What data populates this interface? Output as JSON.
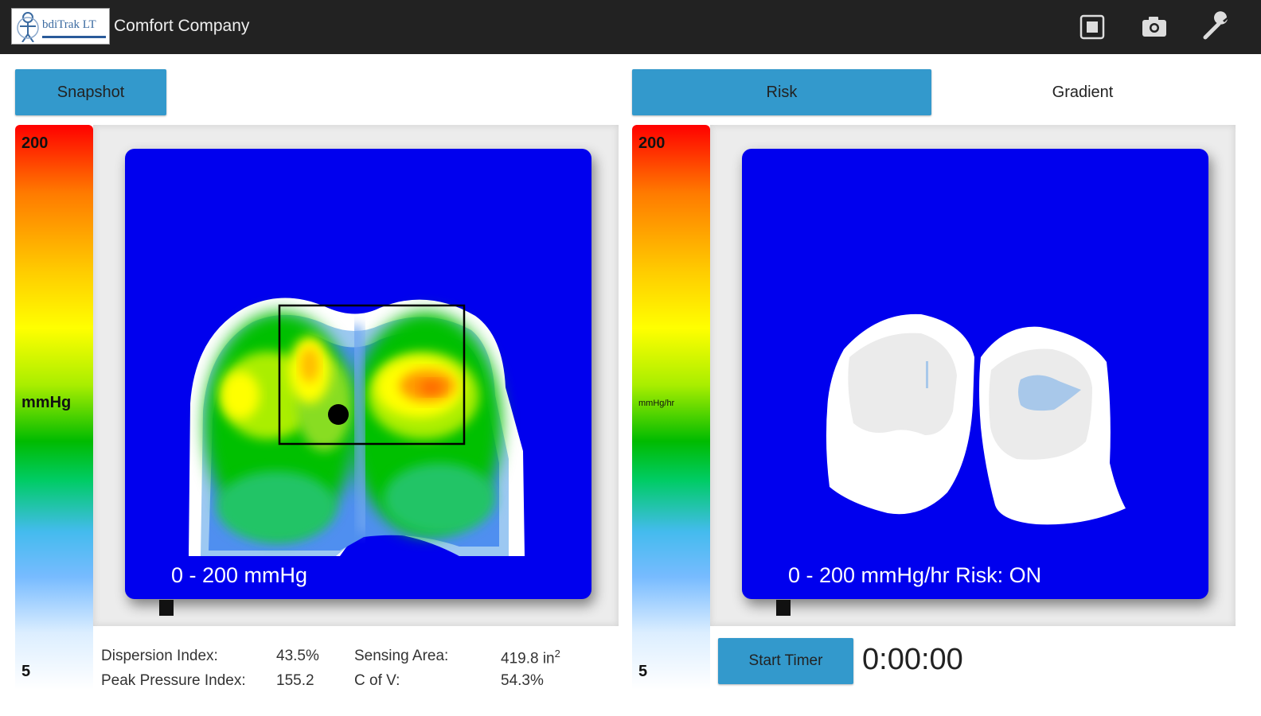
{
  "app": {
    "title": "Comfort Company",
    "logo_text": "bdiTrak LT"
  },
  "actions": {
    "stop": "stop-icon",
    "camera": "camera-icon",
    "settings": "wrench-icon"
  },
  "left": {
    "snapshot_label": "Snapshot",
    "scale": {
      "max": "200",
      "unit": "mmHg",
      "min": "5"
    },
    "map_label": "0 - 200 mmHg"
  },
  "right": {
    "tabs": [
      {
        "label": "Risk",
        "selected": true
      },
      {
        "label": "Gradient",
        "selected": false
      }
    ],
    "scale": {
      "max": "200",
      "unit": "mmHg/hr",
      "min": "5"
    },
    "map_label": "0 - 200 mmHg/hr  Risk: ON",
    "start_timer_label": "Start Timer",
    "timer_value": "0:00:00"
  },
  "stats": {
    "dispersion_label": "Dispersion Index:",
    "dispersion_value": "43.5%",
    "sensing_label": "Sensing Area:",
    "sensing_value": "419.8 in",
    "sensing_unit_sup": "2",
    "peak_label": "Peak Pressure Index:",
    "peak_value": "155.2",
    "cofv_label": "C of V:",
    "cofv_value": "54.3%"
  },
  "colors": {
    "accent": "#3399cc",
    "map_bg": "#0000ee",
    "topbar": "#222222"
  }
}
